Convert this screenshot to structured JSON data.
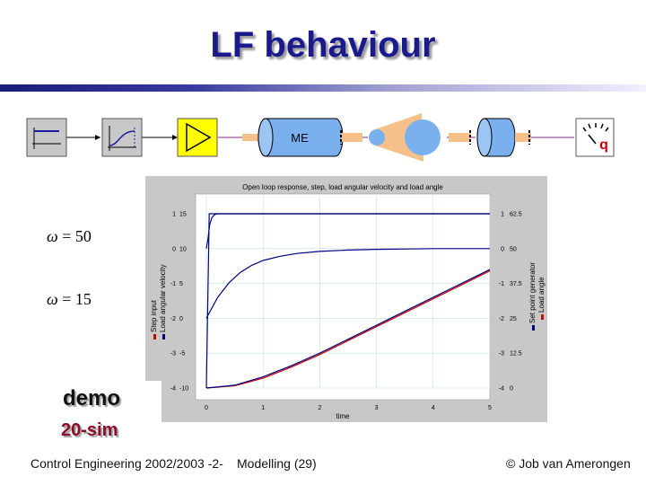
{
  "slide": {
    "title": "LF behaviour",
    "omega_high": "= 50",
    "omega_low": "= 15",
    "omega_symbol": "ω",
    "demo_label": "demo",
    "sim_label": "20-sim"
  },
  "diagram": {
    "motor_label": "ME",
    "sensor_label": "q"
  },
  "footer": {
    "course": "Control Engineering 2002/2003 -2-",
    "section": "Modelling  (29)",
    "copyright": "© Job van Amerongen"
  },
  "chart_data": {
    "type": "line",
    "title": "Open loop response, step, load angular velocity and load angle",
    "xlabel": "time",
    "xlim": [
      0,
      5
    ],
    "x_ticks": [
      "0",
      "1",
      "2",
      "3",
      "4",
      "5"
    ],
    "left_axes": [
      {
        "ticks": [
          "1",
          "0",
          "-1",
          "-2",
          "-3",
          "-4"
        ]
      },
      {
        "ticks": [
          "15",
          "10",
          "5",
          "0",
          "-5",
          "-10"
        ],
        "ylim": [
          -10,
          15
        ]
      }
    ],
    "right_axes": [
      {
        "ticks": [
          "1",
          "0",
          "-1",
          "-2",
          "-3",
          "-4"
        ]
      },
      {
        "ticks": [
          "62.5",
          "50",
          "37.5",
          "25",
          "12.5",
          "0"
        ],
        "ylim": [
          0,
          62.5
        ]
      }
    ],
    "left_legend": [
      "Step input",
      "Load angular velocity"
    ],
    "right_legend": [
      "Set point generator",
      "Load angle"
    ],
    "colors": {
      "blue": "#000080",
      "red": "#cc0000"
    },
    "series": [
      {
        "name": "Step input",
        "axis": "left-outer",
        "x": [
          0,
          0.05,
          5
        ],
        "y": [
          -4,
          1,
          1
        ]
      },
      {
        "name": "Load angular velocity",
        "axis": "left-inner",
        "note": "omega = 50",
        "x": [
          0,
          0.03,
          0.06,
          0.1,
          0.15,
          0.2,
          5
        ],
        "y": [
          10,
          11.5,
          13.5,
          14.5,
          14.9,
          15,
          15
        ]
      },
      {
        "name": "Load angular velocity",
        "axis": "left-inner",
        "note": "omega = 15",
        "x": [
          0,
          0.2,
          0.4,
          0.6,
          0.8,
          1,
          1.3,
          1.6,
          2,
          2.5,
          3,
          4,
          5
        ],
        "y": [
          0,
          3,
          5.1,
          6.6,
          7.6,
          8.3,
          8.9,
          9.3,
          9.6,
          9.8,
          9.9,
          10,
          10
        ]
      },
      {
        "name": "Load angle",
        "axis": "right-inner",
        "x": [
          0,
          0.5,
          1,
          1.5,
          2,
          2.5,
          3,
          3.5,
          4,
          4.5,
          5
        ],
        "y": [
          0,
          0.8,
          3.5,
          7.5,
          12,
          17,
          22,
          27,
          32,
          37,
          42
        ]
      },
      {
        "name": "Set point generator",
        "axis": "right-inner",
        "x": [
          0,
          0.5,
          1,
          1.5,
          2,
          2.5,
          3,
          3.5,
          4,
          4.5,
          5
        ],
        "y": [
          0,
          1,
          4,
          8,
          12.5,
          17.5,
          22.5,
          27.5,
          32.5,
          37.5,
          42.5
        ]
      }
    ]
  }
}
